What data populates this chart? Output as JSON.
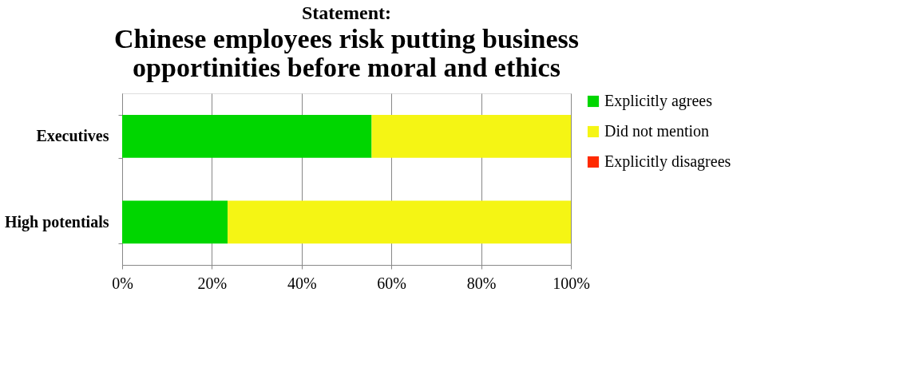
{
  "chart_data": {
    "type": "bar",
    "orientation": "horizontal",
    "stacked": true,
    "subtitle": "Statement:",
    "title": "Chinese employees risk putting business opportinities before moral and ethics",
    "categories": [
      "Executives",
      "High potentials"
    ],
    "series": [
      {
        "name": "Explicitly agrees",
        "color": "#00d600",
        "values": [
          55.6,
          23.5
        ]
      },
      {
        "name": "Did not mention",
        "color": "#f5f514",
        "values": [
          44.4,
          76.5
        ]
      },
      {
        "name": "Explicitly disagrees",
        "color": "#ff2a00",
        "values": [
          0,
          0
        ]
      }
    ],
    "xlim": [
      0,
      100
    ],
    "xticks": [
      {
        "value": 0,
        "label": "0%"
      },
      {
        "value": 20,
        "label": "20%"
      },
      {
        "value": 40,
        "label": "40%"
      },
      {
        "value": 60,
        "label": "60%"
      },
      {
        "value": 80,
        "label": "80%"
      },
      {
        "value": 100,
        "label": "100%"
      }
    ],
    "grid": "x",
    "legend": "right"
  }
}
